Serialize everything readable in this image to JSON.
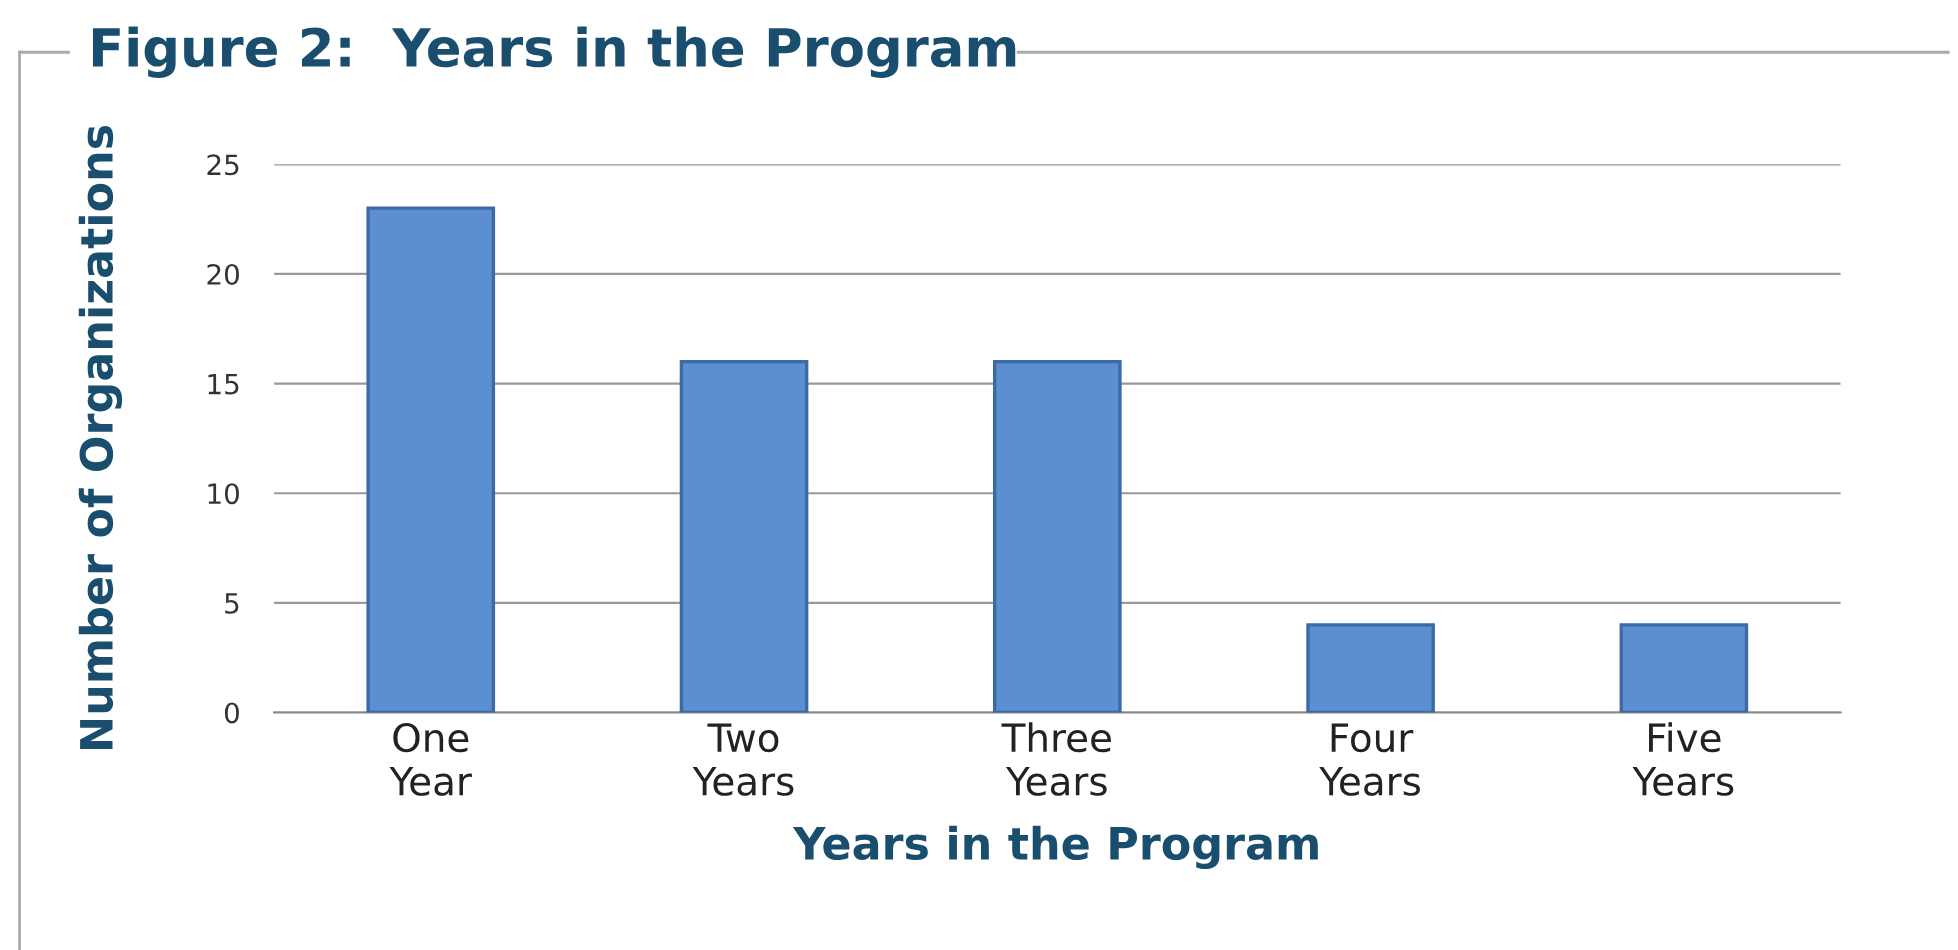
{
  "chart_data": {
    "type": "bar",
    "title": "Figure 2:  Years in the Program",
    "xlabel": "Years in the Program",
    "ylabel": "Number of Organizations",
    "categories": [
      "One\nYear",
      "Two\nYears",
      "Three\nYears",
      "Four\nYears",
      "Five\nYears"
    ],
    "values": [
      23,
      16,
      16,
      4,
      4
    ],
    "color": "#5b8fd0",
    "ylim": [
      0,
      25
    ],
    "yticks": [
      0,
      5,
      10,
      15,
      20,
      25
    ],
    "grid": "y",
    "legend": false
  }
}
